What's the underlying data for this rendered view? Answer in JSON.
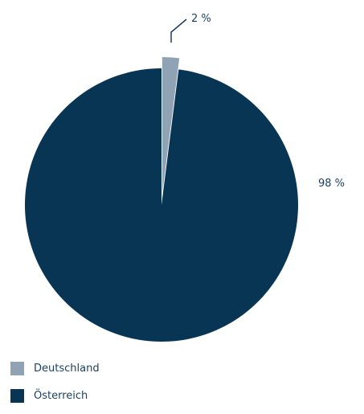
{
  "chart_data": {
    "type": "pie",
    "slices": [
      {
        "name": "Deutschland",
        "value": 2,
        "label": "2 %",
        "color": "#8fa3b5"
      },
      {
        "name": "Österreich",
        "value": 98,
        "label": "98 %",
        "color": "#093554"
      }
    ],
    "legend_position": "bottom-left"
  }
}
